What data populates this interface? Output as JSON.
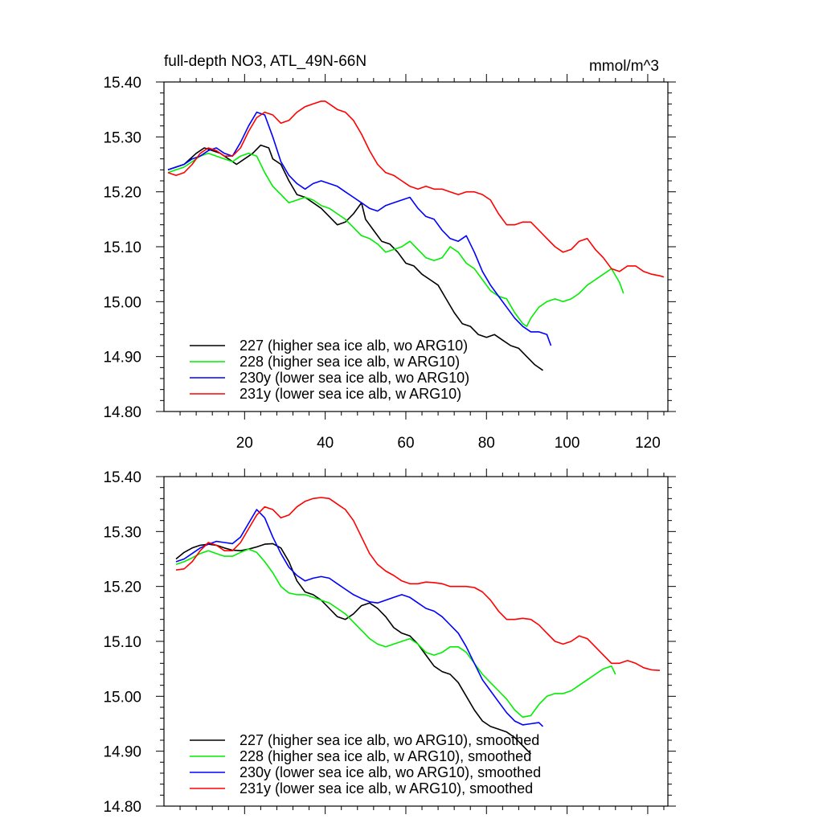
{
  "chart_data": [
    {
      "type": "line",
      "title": "full-depth NO3, ATL_49N-66N",
      "units": "mmol/m^3",
      "xlim": [
        0,
        125
      ],
      "ylim": [
        14.8,
        15.4
      ],
      "xticks": [
        20,
        40,
        60,
        80,
        100,
        120
      ],
      "xtick_labels": [
        "20",
        "40",
        "60",
        "80",
        "100",
        "120"
      ],
      "yticks": [
        14.8,
        14.9,
        15.0,
        15.1,
        15.2,
        15.3,
        15.4
      ],
      "ytick_labels": [
        "14.80",
        "14.90",
        "15.00",
        "15.10",
        "15.20",
        "15.30",
        "15.40"
      ],
      "legend_position": "bottom-left",
      "series": [
        {
          "name": "227 (higher sea ice alb, wo ARG10)",
          "color": "#000000",
          "x": [
            1,
            3,
            5,
            8,
            10,
            12,
            14,
            16,
            18,
            20,
            22,
            24,
            26,
            27,
            29,
            31,
            33,
            35,
            37,
            39,
            41,
            43,
            45,
            47,
            49,
            50,
            52,
            54,
            56,
            58,
            60,
            62,
            64,
            66,
            68,
            70,
            72,
            74,
            76,
            78,
            80,
            82,
            84,
            86,
            88,
            90,
            92,
            94
          ],
          "y": [
            15.24,
            15.245,
            15.25,
            15.27,
            15.28,
            15.275,
            15.27,
            15.26,
            15.25,
            15.26,
            15.27,
            15.285,
            15.28,
            15.26,
            15.25,
            15.22,
            15.195,
            15.19,
            15.18,
            15.17,
            15.155,
            15.14,
            15.145,
            15.16,
            15.18,
            15.15,
            15.13,
            15.11,
            15.105,
            15.09,
            15.07,
            15.065,
            15.05,
            15.04,
            15.03,
            15.005,
            14.98,
            14.96,
            14.955,
            14.94,
            14.935,
            14.94,
            14.93,
            14.92,
            14.915,
            14.9,
            14.885,
            14.875
          ]
        },
        {
          "name": "228 (higher sea ice alb, w ARG10)",
          "color": "#00ee00",
          "x": [
            1,
            3,
            5,
            7,
            9,
            11,
            13,
            15,
            17,
            19,
            21,
            23,
            25,
            27,
            29,
            31,
            33,
            35,
            37,
            39,
            41,
            43,
            45,
            47,
            49,
            51,
            53,
            55,
            57,
            59,
            61,
            63,
            65,
            67,
            69,
            71,
            73,
            75,
            77,
            79,
            81,
            83,
            85,
            87,
            89,
            90,
            91,
            93,
            95,
            97,
            99,
            101,
            103,
            105,
            107,
            109,
            111,
            113,
            114
          ],
          "y": [
            15.235,
            15.24,
            15.245,
            15.255,
            15.265,
            15.27,
            15.265,
            15.26,
            15.255,
            15.265,
            15.27,
            15.265,
            15.235,
            15.21,
            15.195,
            15.18,
            15.185,
            15.19,
            15.185,
            15.175,
            15.17,
            15.16,
            15.15,
            15.135,
            15.12,
            15.115,
            15.105,
            15.09,
            15.095,
            15.1,
            15.11,
            15.095,
            15.08,
            15.075,
            15.08,
            15.1,
            15.09,
            15.07,
            15.06,
            15.04,
            15.02,
            15.01,
            15.005,
            14.98,
            14.96,
            14.955,
            14.97,
            14.99,
            15.0,
            15.005,
            15.0,
            15.005,
            15.015,
            15.03,
            15.04,
            15.05,
            15.06,
            15.035,
            15.015
          ]
        },
        {
          "name": "230y (lower sea ice alb, wo ARG10)",
          "color": "#0000ff",
          "x": [
            1,
            3,
            5,
            7,
            9,
            11,
            13,
            15,
            17,
            19,
            21,
            23,
            25,
            27,
            29,
            31,
            33,
            35,
            37,
            39,
            41,
            43,
            45,
            47,
            49,
            51,
            53,
            55,
            57,
            59,
            61,
            63,
            65,
            67,
            69,
            71,
            73,
            75,
            77,
            79,
            81,
            83,
            85,
            87,
            89,
            91,
            93,
            95,
            96
          ],
          "y": [
            15.24,
            15.245,
            15.25,
            15.26,
            15.265,
            15.275,
            15.28,
            15.27,
            15.265,
            15.29,
            15.32,
            15.345,
            15.34,
            15.3,
            15.255,
            15.23,
            15.215,
            15.205,
            15.215,
            15.22,
            15.215,
            15.21,
            15.2,
            15.19,
            15.18,
            15.17,
            15.165,
            15.175,
            15.18,
            15.185,
            15.19,
            15.17,
            15.155,
            15.15,
            15.13,
            15.115,
            15.11,
            15.12,
            15.09,
            15.055,
            15.03,
            15.01,
            14.99,
            14.97,
            14.955,
            14.945,
            14.945,
            14.94,
            14.92
          ]
        },
        {
          "name": "231y (lower sea ice alb, w ARG10)",
          "color": "#ff0000",
          "x": [
            1,
            3,
            5,
            7,
            9,
            11,
            13,
            15,
            17,
            19,
            21,
            23,
            25,
            27,
            29,
            31,
            33,
            35,
            37,
            39,
            40,
            41,
            43,
            45,
            47,
            49,
            51,
            53,
            55,
            57,
            59,
            61,
            63,
            65,
            67,
            69,
            71,
            73,
            75,
            77,
            79,
            81,
            83,
            85,
            87,
            89,
            91,
            93,
            95,
            97,
            99,
            101,
            103,
            105,
            107,
            109,
            111,
            113,
            115,
            117,
            119,
            121,
            123,
            124
          ],
          "y": [
            15.235,
            15.23,
            15.235,
            15.25,
            15.27,
            15.28,
            15.275,
            15.265,
            15.265,
            15.28,
            15.31,
            15.335,
            15.345,
            15.34,
            15.325,
            15.33,
            15.345,
            15.355,
            15.36,
            15.365,
            15.365,
            15.36,
            15.35,
            15.345,
            15.33,
            15.305,
            15.275,
            15.25,
            15.235,
            15.23,
            15.22,
            15.21,
            15.205,
            15.21,
            15.205,
            15.205,
            15.2,
            15.195,
            15.2,
            15.2,
            15.195,
            15.185,
            15.16,
            15.14,
            15.14,
            15.145,
            15.145,
            15.13,
            15.115,
            15.1,
            15.09,
            15.095,
            15.11,
            15.115,
            15.095,
            15.08,
            15.06,
            15.055,
            15.065,
            15.065,
            15.055,
            15.05,
            15.047,
            15.045
          ]
        }
      ]
    },
    {
      "type": "line",
      "title": "",
      "xlim": [
        0,
        125
      ],
      "ylim": [
        14.8,
        15.4
      ],
      "yticks": [
        14.8,
        14.9,
        15.0,
        15.1,
        15.2,
        15.3,
        15.4
      ],
      "ytick_labels": [
        "14.80",
        "14.90",
        "15.00",
        "15.10",
        "15.20",
        "15.30",
        "15.40"
      ],
      "legend_position": "bottom-left",
      "series": [
        {
          "name": "227 (higher sea ice alb, wo ARG10), smoothed",
          "color": "#000000",
          "x": [
            3,
            5,
            7,
            9,
            11,
            13,
            15,
            17,
            19,
            21,
            23,
            25,
            27,
            29,
            31,
            33,
            35,
            37,
            39,
            41,
            43,
            45,
            47,
            49,
            51,
            53,
            55,
            57,
            59,
            61,
            63,
            65,
            67,
            69,
            71,
            73,
            75,
            77,
            79,
            81,
            83,
            85,
            87,
            89,
            91
          ],
          "y": [
            15.25,
            15.262,
            15.27,
            15.275,
            15.277,
            15.275,
            15.27,
            15.266,
            15.265,
            15.268,
            15.272,
            15.277,
            15.278,
            15.27,
            15.245,
            15.21,
            15.19,
            15.185,
            15.175,
            15.16,
            15.145,
            15.14,
            15.15,
            15.165,
            15.17,
            15.16,
            15.145,
            15.125,
            15.115,
            15.11,
            15.095,
            15.075,
            15.055,
            15.045,
            15.04,
            15.025,
            15.0,
            14.975,
            14.955,
            14.945,
            14.94,
            14.935,
            14.925,
            14.91,
            14.895
          ]
        },
        {
          "name": "228 (higher sea ice alb, w ARG10), smoothed",
          "color": "#00ee00",
          "x": [
            3,
            5,
            7,
            9,
            11,
            13,
            15,
            17,
            19,
            21,
            23,
            25,
            27,
            29,
            31,
            33,
            35,
            37,
            39,
            41,
            43,
            45,
            47,
            49,
            51,
            53,
            55,
            57,
            59,
            61,
            63,
            65,
            67,
            69,
            71,
            73,
            75,
            77,
            79,
            81,
            83,
            85,
            87,
            89,
            91,
            93,
            95,
            97,
            99,
            101,
            103,
            105,
            107,
            109,
            111,
            112
          ],
          "y": [
            15.24,
            15.245,
            15.252,
            15.26,
            15.265,
            15.26,
            15.255,
            15.255,
            15.262,
            15.268,
            15.262,
            15.245,
            15.225,
            15.2,
            15.188,
            15.185,
            15.185,
            15.18,
            15.175,
            15.17,
            15.16,
            15.15,
            15.135,
            15.12,
            15.105,
            15.095,
            15.09,
            15.095,
            15.1,
            15.105,
            15.095,
            15.08,
            15.075,
            15.08,
            15.09,
            15.09,
            15.08,
            15.06,
            15.04,
            15.025,
            15.01,
            14.995,
            14.975,
            14.962,
            14.965,
            14.985,
            15.0,
            15.005,
            15.005,
            15.01,
            15.02,
            15.03,
            15.04,
            15.05,
            15.055,
            15.04
          ]
        },
        {
          "name": "230y (lower sea ice alb, wo ARG10), smoothed",
          "color": "#0000ff",
          "x": [
            3,
            5,
            7,
            9,
            11,
            13,
            15,
            17,
            19,
            21,
            23,
            25,
            27,
            29,
            31,
            33,
            35,
            37,
            39,
            41,
            43,
            45,
            47,
            49,
            51,
            53,
            55,
            57,
            59,
            61,
            63,
            65,
            67,
            69,
            71,
            73,
            75,
            77,
            79,
            81,
            83,
            85,
            87,
            89,
            91,
            93,
            94
          ],
          "y": [
            15.245,
            15.25,
            15.26,
            15.27,
            15.277,
            15.282,
            15.28,
            15.278,
            15.29,
            15.315,
            15.34,
            15.325,
            15.29,
            15.26,
            15.235,
            15.22,
            15.21,
            15.215,
            15.218,
            15.215,
            15.205,
            15.195,
            15.185,
            15.178,
            15.172,
            15.17,
            15.175,
            15.18,
            15.185,
            15.18,
            15.17,
            15.16,
            15.155,
            15.145,
            15.13,
            15.115,
            15.09,
            15.06,
            15.03,
            15.01,
            14.99,
            14.97,
            14.955,
            14.948,
            14.95,
            14.952,
            14.945
          ]
        },
        {
          "name": "231y (lower sea ice alb, w ARG10), smoothed",
          "color": "#ff0000",
          "x": [
            3,
            5,
            7,
            9,
            11,
            13,
            15,
            17,
            19,
            21,
            23,
            25,
            27,
            29,
            31,
            33,
            35,
            37,
            39,
            41,
            43,
            45,
            47,
            49,
            51,
            53,
            55,
            57,
            59,
            61,
            63,
            65,
            67,
            69,
            71,
            73,
            75,
            77,
            79,
            81,
            83,
            85,
            87,
            89,
            91,
            93,
            95,
            97,
            99,
            101,
            103,
            105,
            107,
            109,
            111,
            113,
            115,
            117,
            119,
            121,
            123
          ],
          "y": [
            15.23,
            15.232,
            15.245,
            15.265,
            15.28,
            15.275,
            15.265,
            15.265,
            15.28,
            15.305,
            15.33,
            15.345,
            15.34,
            15.325,
            15.33,
            15.345,
            15.355,
            15.36,
            15.362,
            15.36,
            15.35,
            15.34,
            15.32,
            15.29,
            15.26,
            15.24,
            15.228,
            15.22,
            15.21,
            15.205,
            15.205,
            15.208,
            15.207,
            15.205,
            15.2,
            15.2,
            15.2,
            15.198,
            15.19,
            15.175,
            15.155,
            15.14,
            15.14,
            15.142,
            15.14,
            15.13,
            15.115,
            15.1,
            15.095,
            15.1,
            15.11,
            15.105,
            15.09,
            15.075,
            15.06,
            15.06,
            15.065,
            15.06,
            15.052,
            15.048,
            15.047
          ]
        }
      ]
    }
  ]
}
